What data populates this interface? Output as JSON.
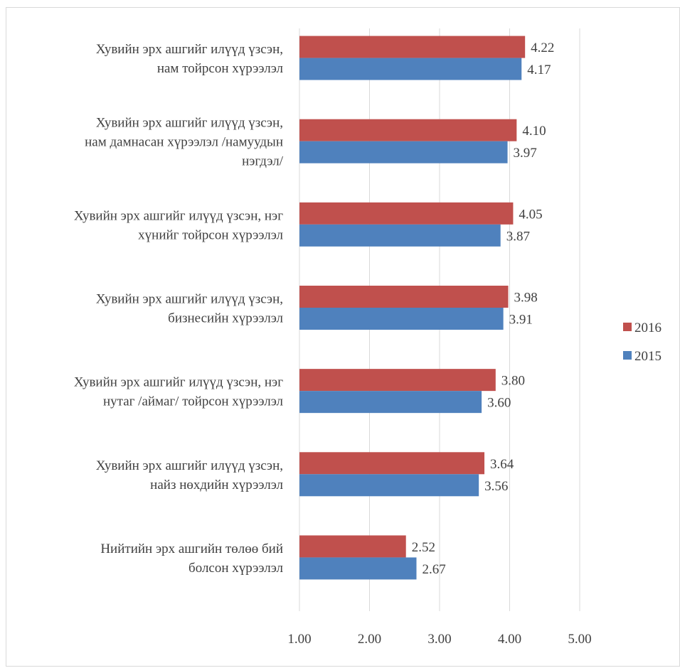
{
  "chart_data": {
    "type": "bar",
    "orientation": "horizontal",
    "categories": [
      [
        "Хувийн эрх ашгийг илүүд үзсэн,",
        "нам тойрсон хүрээлэл"
      ],
      [
        "Хувийн эрх ашгийг илүүд үзсэн,",
        "нам дамнасан хүрээлэл /намуудын",
        "нэгдэл/"
      ],
      [
        "Хувийн эрх ашгийг илүүд үзсэн, нэг",
        "хүнийг тойрсон хүрээлэл"
      ],
      [
        "Хувийн эрх ашгийг илүүд үзсэн,",
        "бизнесийн хүрээлэл"
      ],
      [
        "Хувийн эрх ашгийг илүүд үзсэн, нэг",
        "нутаг /аймаг/ тойрсон хүрээлэл"
      ],
      [
        "Хувийн эрх ашгийг илүүд үзсэн,",
        "найз нөхдийн хүрээлэл"
      ],
      [
        "Нийтийн эрх ашгийн төлөө бий",
        "болсон хүрээлэл"
      ]
    ],
    "series": [
      {
        "name": "2016",
        "color": "#c0504d",
        "values": [
          4.22,
          4.1,
          4.05,
          3.98,
          3.8,
          3.64,
          2.52
        ],
        "labels": [
          "4.22",
          "4.10",
          "4.05",
          "3.98",
          "3.80",
          "3.64",
          "2.52"
        ]
      },
      {
        "name": "2015",
        "color": "#4f81bd",
        "values": [
          4.17,
          3.97,
          3.87,
          3.91,
          3.6,
          3.56,
          2.67
        ],
        "labels": [
          "4.17",
          "3.97",
          "3.87",
          "3.91",
          "3.60",
          "3.56",
          "2.67"
        ]
      }
    ],
    "xlim": [
      1,
      5
    ],
    "ticks": [
      1,
      2,
      3,
      4,
      5
    ],
    "tick_labels": [
      "1.00",
      "2.00",
      "3.00",
      "4.00",
      "5.00"
    ],
    "grid": "vertical",
    "gridline_color": "#d9d9d9",
    "legend": {
      "placement": "right",
      "entries": [
        {
          "name": "2016",
          "color": "#c0504d"
        },
        {
          "name": "2015",
          "color": "#4f81bd"
        }
      ]
    }
  }
}
